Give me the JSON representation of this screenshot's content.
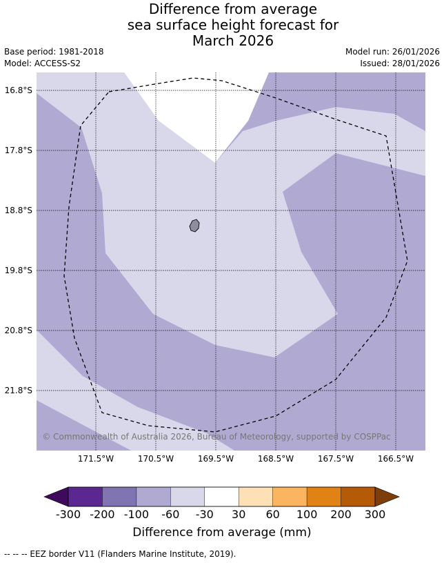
{
  "title": {
    "line1": "Difference from average",
    "line2": "sea surface height forecast for",
    "line3": "March 2026"
  },
  "meta_left": {
    "base_period": "Base period: 1981-2018",
    "model": "Model: ACCESS-S2"
  },
  "meta_right": {
    "model_run": "Model run: 26/01/2026",
    "issued": "Issued: 28/01/2026"
  },
  "map": {
    "lat_labels": [
      "16.8°S",
      "17.8°S",
      "18.8°S",
      "19.8°S",
      "20.8°S",
      "21.8°S"
    ],
    "lon_labels": [
      "171.5°W",
      "170.5°W",
      "169.5°W",
      "168.5°W",
      "167.5°W",
      "166.5°W"
    ],
    "copyright": "© Commonwealth of Australia 2026, Bureau of Meteorology, supported by COSPPac",
    "colors": {
      "below_60": "#b0a9d2",
      "minus_60_to_30": "#d8d8ea",
      "minus_30_to_30": "#ffffff",
      "land": "#8d8d9d"
    }
  },
  "colorbar": {
    "ticks": [
      "-300",
      "-200",
      "-100",
      "-60",
      "-30",
      "30",
      "60",
      "100",
      "200",
      "300"
    ],
    "colors": [
      "#3f0a5c",
      "#5a2890",
      "#8074b2",
      "#b0a9d2",
      "#d8d8ea",
      "#ffffff",
      "#fde0b5",
      "#fbb561",
      "#e08314",
      "#b55a07",
      "#7e3e0a"
    ],
    "label": "Difference from average (mm)"
  },
  "footer": "--  --  -- EEZ border V11 (Flanders Marine Institute, 2019)."
}
